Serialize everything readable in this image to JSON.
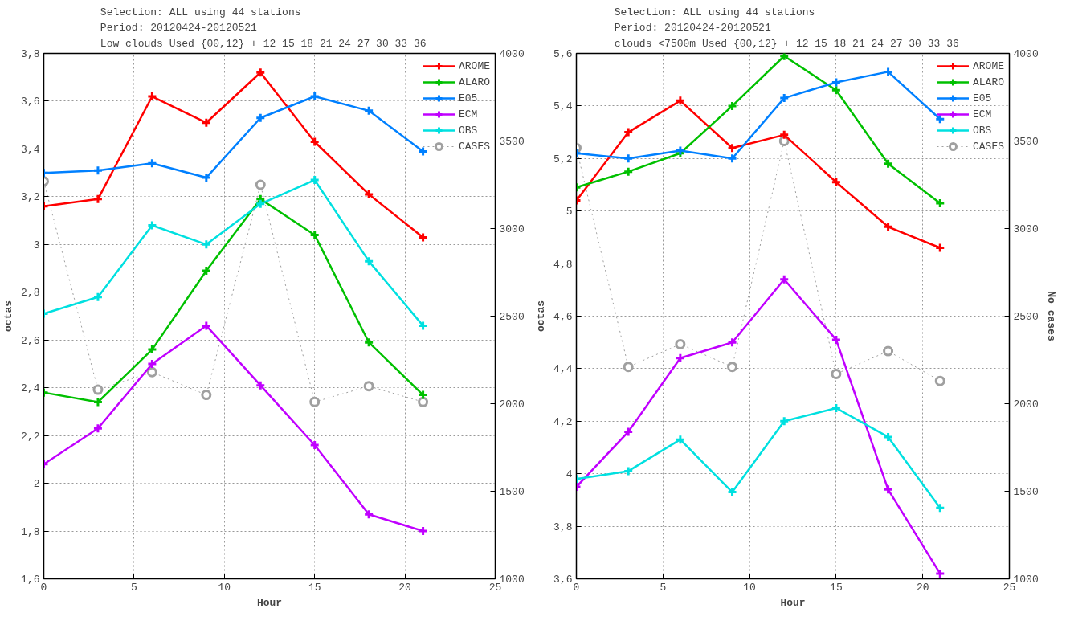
{
  "chart_data": [
    {
      "type": "line",
      "title": "Selection: ALL using    44 stations\nPeriod: 20120424-20120521\nLow clouds   Used {00,12} + 12 15 18 21 24 27 30 33 36",
      "xlabel": "Hour",
      "ylabel": "octas",
      "x": [
        0,
        3,
        6,
        9,
        12,
        15,
        18,
        21
      ],
      "xlim": [
        0,
        25
      ],
      "xticks": [
        0,
        5,
        10,
        15,
        20,
        25
      ],
      "ylim": [
        1.6,
        3.8
      ],
      "yticks": [
        {
          "value": 1.6,
          "label": "1,6"
        },
        {
          "value": 1.8,
          "label": "1,8"
        },
        {
          "value": 2,
          "label": "2"
        },
        {
          "value": 2.2,
          "label": "2,2"
        },
        {
          "value": 2.4,
          "label": "2,4"
        },
        {
          "value": 2.6,
          "label": "2,6"
        },
        {
          "value": 2.8,
          "label": "2,8"
        },
        {
          "value": 3,
          "label": "3"
        },
        {
          "value": 3.2,
          "label": "3,2"
        },
        {
          "value": 3.4,
          "label": "3,4"
        },
        {
          "value": 3.6,
          "label": "3,6"
        },
        {
          "value": 3.8,
          "label": "3,8"
        }
      ],
      "y2lim": [
        1000,
        4000
      ],
      "y2ticks": [
        1000,
        1500,
        2000,
        2500,
        3000,
        3500,
        4000
      ],
      "grid": true,
      "legend": "top right",
      "marker": "cross",
      "line_style": "solid",
      "series": [
        {
          "name": "AROME",
          "color": "#ff0000",
          "values": [
            3.16,
            3.19,
            3.62,
            3.51,
            3.72,
            3.43,
            3.21,
            3.03
          ]
        },
        {
          "name": "ALARO",
          "color": "#00c000",
          "values": [
            2.38,
            2.34,
            2.56,
            2.89,
            3.19,
            3.04,
            2.59,
            2.37
          ]
        },
        {
          "name": "E05",
          "color": "#0080ff",
          "values": [
            3.3,
            3.31,
            3.34,
            3.28,
            3.53,
            3.62,
            3.56,
            3.39
          ]
        },
        {
          "name": "ECM",
          "color": "#c000ff",
          "values": [
            2.08,
            2.23,
            2.5,
            2.66,
            2.41,
            2.16,
            1.87,
            1.8
          ]
        },
        {
          "name": "OBS",
          "color": "#00e0e0",
          "values": [
            2.71,
            2.78,
            3.08,
            3.0,
            3.17,
            3.27,
            2.93,
            2.66
          ]
        },
        {
          "name": "CASES",
          "color": "#a0a0a0",
          "axis": "y2",
          "marker": "circle",
          "line_style": "dotted",
          "values": [
            3270,
            2080,
            2180,
            2050,
            3250,
            2010,
            2100,
            2010
          ]
        }
      ]
    },
    {
      "type": "line",
      "title": "Selection: ALL using    44 stations\nPeriod: 20120424-20120521\nclouds <7500m   Used {00,12} + 12 15 18 21 24 27 30 33 36",
      "xlabel": "Hour",
      "ylabel": "octas",
      "y2label": "No cases",
      "x": [
        0,
        3,
        6,
        9,
        12,
        15,
        18,
        21
      ],
      "xlim": [
        0,
        25
      ],
      "xticks": [
        0,
        5,
        10,
        15,
        20,
        25
      ],
      "ylim": [
        3.6,
        5.6
      ],
      "yticks": [
        {
          "value": 3.6,
          "label": "3,6"
        },
        {
          "value": 3.8,
          "label": "3,8"
        },
        {
          "value": 4,
          "label": "4"
        },
        {
          "value": 4.2,
          "label": "4,2"
        },
        {
          "value": 4.4,
          "label": "4,4"
        },
        {
          "value": 4.6,
          "label": "4,6"
        },
        {
          "value": 4.8,
          "label": "4,8"
        },
        {
          "value": 5,
          "label": "5"
        },
        {
          "value": 5.2,
          "label": "5,2"
        },
        {
          "value": 5.4,
          "label": "5,4"
        },
        {
          "value": 5.6,
          "label": "5,6"
        }
      ],
      "y2lim": [
        1000,
        4000
      ],
      "y2ticks": [
        1000,
        1500,
        2000,
        2500,
        3000,
        3500,
        4000
      ],
      "grid": true,
      "legend": "top right",
      "marker": "cross",
      "line_style": "solid",
      "series": [
        {
          "name": "AROME",
          "color": "#ff0000",
          "values": [
            5.04,
            5.3,
            5.42,
            5.24,
            5.29,
            5.11,
            4.94,
            4.86
          ]
        },
        {
          "name": "ALARO",
          "color": "#00c000",
          "values": [
            5.09,
            5.15,
            5.22,
            5.4,
            5.59,
            5.46,
            5.18,
            5.03
          ]
        },
        {
          "name": "E05",
          "color": "#0080ff",
          "values": [
            5.22,
            5.2,
            5.23,
            5.2,
            5.43,
            5.49,
            5.53,
            5.35
          ]
        },
        {
          "name": "ECM",
          "color": "#c000ff",
          "values": [
            3.95,
            4.16,
            4.44,
            4.5,
            4.74,
            4.51,
            3.94,
            3.62
          ]
        },
        {
          "name": "OBS",
          "color": "#00e0e0",
          "values": [
            3.98,
            4.01,
            4.13,
            3.93,
            4.2,
            4.25,
            4.14,
            3.87
          ]
        },
        {
          "name": "CASES",
          "color": "#a0a0a0",
          "axis": "y2",
          "marker": "circle",
          "line_style": "dotted",
          "values": [
            3460,
            2210,
            2340,
            2210,
            3500,
            2170,
            2300,
            2130
          ]
        }
      ]
    }
  ]
}
